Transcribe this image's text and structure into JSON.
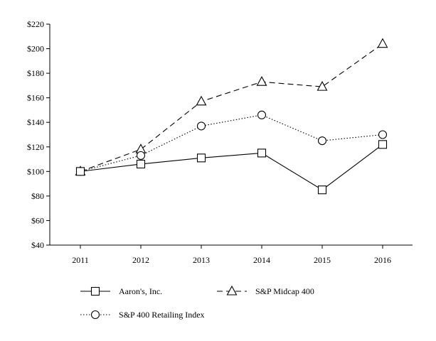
{
  "chart_data": {
    "type": "line",
    "title": "",
    "xlabel": "",
    "ylabel": "",
    "categories": [
      "2011",
      "2012",
      "2013",
      "2014",
      "2015",
      "2016"
    ],
    "ylim": [
      40,
      220
    ],
    "y_ticks": [
      40,
      60,
      80,
      100,
      120,
      140,
      160,
      180,
      200,
      220
    ],
    "y_tick_labels": [
      "$40",
      "$60",
      "$80",
      "$100",
      "$120",
      "$140",
      "$160",
      "$180",
      "$200",
      "$220"
    ],
    "grid": false,
    "legend_position": "bottom",
    "series": [
      {
        "name": "Aaron's, Inc.",
        "values": [
          100,
          106,
          111,
          115,
          85,
          122
        ],
        "line_style": "solid",
        "marker": "square",
        "color": "#000000"
      },
      {
        "name": "S&P Midcap 400",
        "values": [
          100,
          118,
          157,
          173,
          169,
          204
        ],
        "line_style": "dashed",
        "marker": "triangle",
        "color": "#000000"
      },
      {
        "name": "S&P 400 Retailing Index",
        "values": [
          100,
          113,
          137,
          146,
          125,
          130
        ],
        "line_style": "dotted",
        "marker": "circle",
        "color": "#000000"
      }
    ]
  }
}
